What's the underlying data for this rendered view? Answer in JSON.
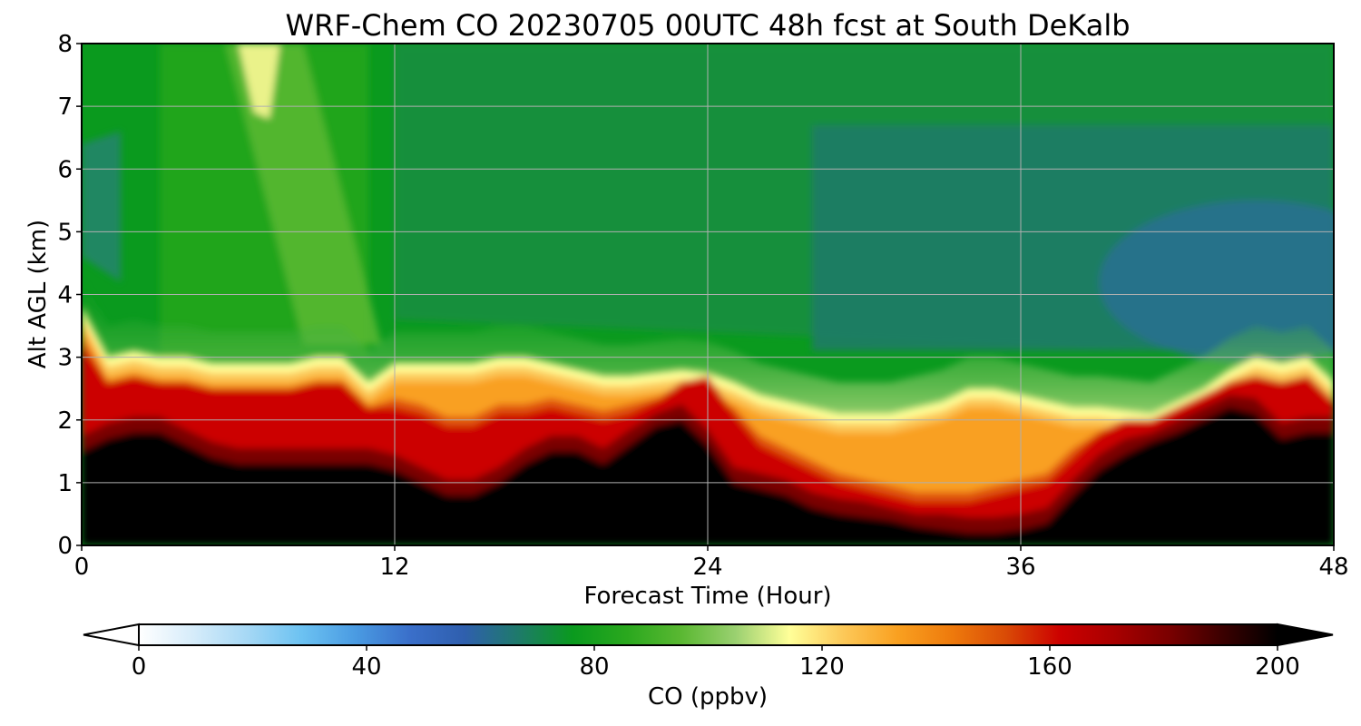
{
  "chart_data": {
    "type": "heatmap",
    "title": "WRF-Chem CO  20230705 00UTC 48h fcst at South DeKalb",
    "xlabel": "Forecast Time (Hour)",
    "ylabel": "Alt AGL (km)",
    "xlim": [
      0,
      48
    ],
    "ylim": [
      0,
      8
    ],
    "xticks": [
      0,
      12,
      24,
      36,
      48
    ],
    "yticks": [
      0,
      1,
      2,
      3,
      4,
      5,
      6,
      7,
      8
    ],
    "grid": true,
    "colorbar": {
      "label": "CO  (ppbv)",
      "range": [
        0,
        200
      ],
      "ticks": [
        0,
        40,
        80,
        120,
        160,
        200
      ],
      "extend": "both",
      "orientation": "horizontal",
      "colors": [
        "#ffffff",
        "#d6ecfa",
        "#a6d8f5",
        "#6cc2f2",
        "#4a9be2",
        "#3a6fca",
        "#2f5fae",
        "#1e7a6a",
        "#0a9a1e",
        "#2aa81e",
        "#5ab832",
        "#9ad070",
        "#ffff99",
        "#fcc858",
        "#f9a020",
        "#ee7a0c",
        "#d94a06",
        "#cc0000",
        "#a80000",
        "#7a0000",
        "#3a0000",
        "#000000"
      ]
    },
    "time_hours": [
      0,
      1,
      2,
      3,
      4,
      5,
      6,
      7,
      8,
      9,
      10,
      11,
      12,
      13,
      14,
      15,
      16,
      17,
      18,
      19,
      20,
      21,
      22,
      23,
      24,
      25,
      26,
      27,
      28,
      29,
      30,
      31,
      32,
      33,
      34,
      35,
      36,
      37,
      38,
      39,
      40,
      41,
      42,
      43,
      44,
      45,
      46,
      47,
      48
    ],
    "series": [
      {
        "name": "black core top (~200 ppbv, km)",
        "values": [
          1.5,
          1.7,
          1.8,
          1.8,
          1.6,
          1.4,
          1.3,
          1.3,
          1.3,
          1.3,
          1.3,
          1.3,
          1.2,
          1.0,
          0.8,
          0.8,
          1.0,
          1.3,
          1.5,
          1.5,
          1.3,
          1.6,
          1.9,
          2.0,
          1.6,
          1.0,
          0.9,
          0.8,
          0.6,
          0.5,
          0.45,
          0.4,
          0.3,
          0.25,
          0.2,
          0.2,
          0.25,
          0.35,
          0.8,
          1.2,
          1.45,
          1.65,
          1.8,
          2.0,
          2.2,
          2.1,
          1.7,
          1.8,
          1.8
        ]
      },
      {
        "name": "black core bottom (km)",
        "values": [
          0,
          0,
          0,
          0,
          0,
          0,
          0,
          0,
          0,
          0,
          0,
          0,
          0,
          0,
          0,
          0,
          0,
          0,
          0,
          0,
          0,
          0,
          0,
          0,
          0,
          0,
          0,
          0,
          0,
          0,
          0,
          0,
          0,
          0,
          0,
          0,
          0,
          0,
          0,
          0,
          0,
          0,
          0,
          0,
          0,
          0,
          0,
          0,
          0
        ]
      },
      {
        "name": "red layer top (~150 ppbv, km)",
        "values": [
          3.2,
          2.6,
          2.7,
          2.6,
          2.6,
          2.5,
          2.5,
          2.5,
          2.5,
          2.6,
          2.6,
          2.2,
          2.2,
          2.1,
          1.9,
          1.9,
          2.1,
          2.1,
          2.2,
          2.1,
          2.0,
          2.1,
          2.3,
          2.6,
          2.7,
          2.1,
          1.6,
          1.4,
          1.2,
          1.0,
          0.9,
          0.8,
          0.7,
          0.7,
          0.7,
          0.8,
          0.9,
          1.0,
          1.4,
          1.8,
          2.0,
          2.0,
          2.2,
          2.4,
          2.6,
          2.7,
          2.6,
          2.7,
          2.3
        ]
      },
      {
        "name": "sharp gradient top (~100 ppbv, km)",
        "values": [
          3.8,
          3.0,
          3.1,
          3.0,
          3.0,
          2.9,
          2.9,
          2.9,
          2.9,
          3.0,
          3.0,
          2.6,
          2.9,
          2.9,
          2.9,
          2.9,
          3.0,
          3.0,
          2.9,
          2.8,
          2.7,
          2.7,
          2.75,
          2.8,
          2.75,
          2.6,
          2.4,
          2.3,
          2.2,
          2.1,
          2.1,
          2.1,
          2.2,
          2.3,
          2.5,
          2.5,
          2.4,
          2.3,
          2.2,
          2.2,
          2.15,
          2.1,
          2.3,
          2.5,
          2.8,
          3.0,
          2.9,
          3.0,
          2.6
        ]
      },
      {
        "name": "light-green plume (~88 ppbv, time hours)",
        "values": [
          5.5,
          11.5
        ]
      },
      {
        "name": "blue-teal region (~65 ppbv, time hours)",
        "values": [
          28,
          48
        ]
      }
    ]
  }
}
